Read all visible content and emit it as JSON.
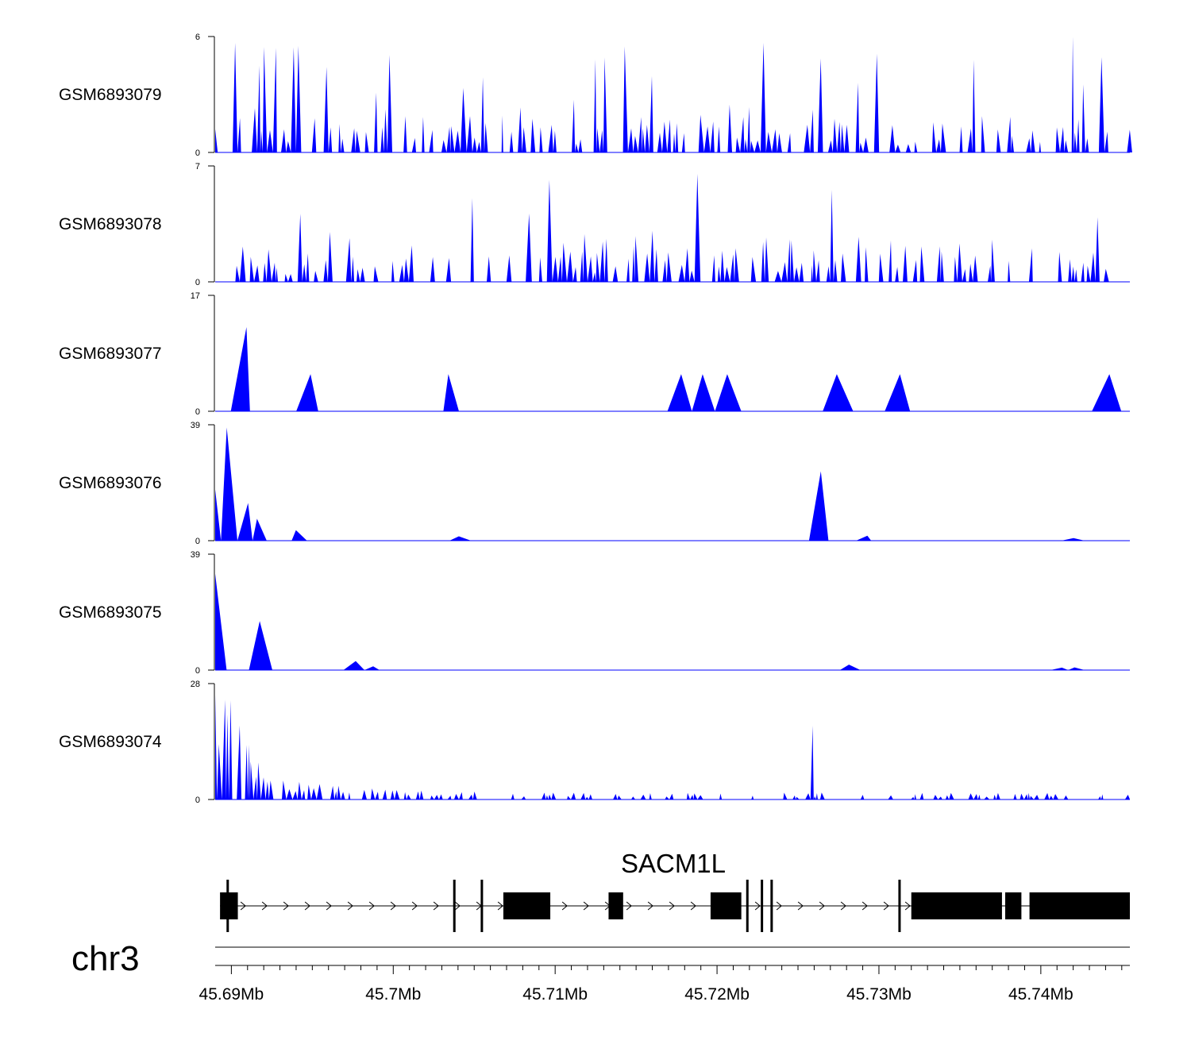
{
  "chart_data": {
    "type": "area",
    "title": "",
    "chromosome": "chr3",
    "region_mb": [
      45.689,
      45.7455
    ],
    "xlabel": "",
    "x_ticks": [
      "45.69Mb",
      "45.7Mb",
      "45.71Mb",
      "45.72Mb",
      "45.73Mb",
      "45.74Mb"
    ],
    "x_tick_values": [
      45.69,
      45.7,
      45.71,
      45.72,
      45.73,
      45.74
    ],
    "fill_color": "#0000ff",
    "tracks": [
      {
        "name": "GSM6893079",
        "ylim": [
          0,
          6
        ],
        "ytick_labels": [
          "0",
          "6"
        ],
        "max": 6,
        "seed": 79,
        "profile": "uniform",
        "density": 0.55,
        "spike_prob": 0.12
      },
      {
        "name": "GSM6893078",
        "ylim": [
          0,
          7
        ],
        "ytick_labels": [
          "0",
          "7"
        ],
        "max": 7,
        "seed": 78,
        "profile": "uniform",
        "density": 0.5,
        "spike_prob": 0.1
      },
      {
        "name": "GSM6893077",
        "ylim": [
          0,
          17
        ],
        "ytick_labels": [
          "0",
          "17"
        ],
        "max": 17,
        "seed": 77,
        "profile": "sparse",
        "density": 0.18,
        "spike_prob": 0.08
      },
      {
        "name": "GSM6893076",
        "ylim": [
          0,
          39
        ],
        "ytick_labels": [
          "0",
          "39"
        ],
        "max": 39,
        "seed": 76,
        "profile": "left-peak",
        "density": 0.12,
        "spike_prob": 0.03
      },
      {
        "name": "GSM6893075",
        "ylim": [
          0,
          39
        ],
        "ytick_labels": [
          "0",
          "39"
        ],
        "max": 39,
        "seed": 75,
        "profile": "left-peak",
        "density": 0.16,
        "spike_prob": 0.03
      },
      {
        "name": "GSM6893074",
        "ylim": [
          0,
          28
        ],
        "ytick_labels": [
          "0",
          "28"
        ],
        "max": 28,
        "seed": 74,
        "profile": "left-peak-dense",
        "density": 0.35,
        "spike_prob": 0.04
      }
    ],
    "genes": [
      {
        "name": "SACM1L",
        "strand": "+",
        "start_mb": 45.6893,
        "end_mb": 45.7455,
        "exons_mb": [
          [
            45.6893,
            45.6904
          ],
          [
            45.6897,
            45.6897
          ],
          [
            45.7037,
            45.7038
          ],
          [
            45.7054,
            45.7055
          ],
          [
            45.7068,
            45.7097
          ],
          [
            45.7133,
            45.7142
          ],
          [
            45.7196,
            45.7215
          ],
          [
            45.7218,
            45.7219
          ],
          [
            45.7227,
            45.7228
          ],
          [
            45.7233,
            45.7234
          ],
          [
            45.7312,
            45.7313
          ],
          [
            45.732,
            45.7376
          ],
          [
            45.7378,
            45.7388
          ],
          [
            45.7393,
            45.7455
          ]
        ]
      }
    ]
  }
}
